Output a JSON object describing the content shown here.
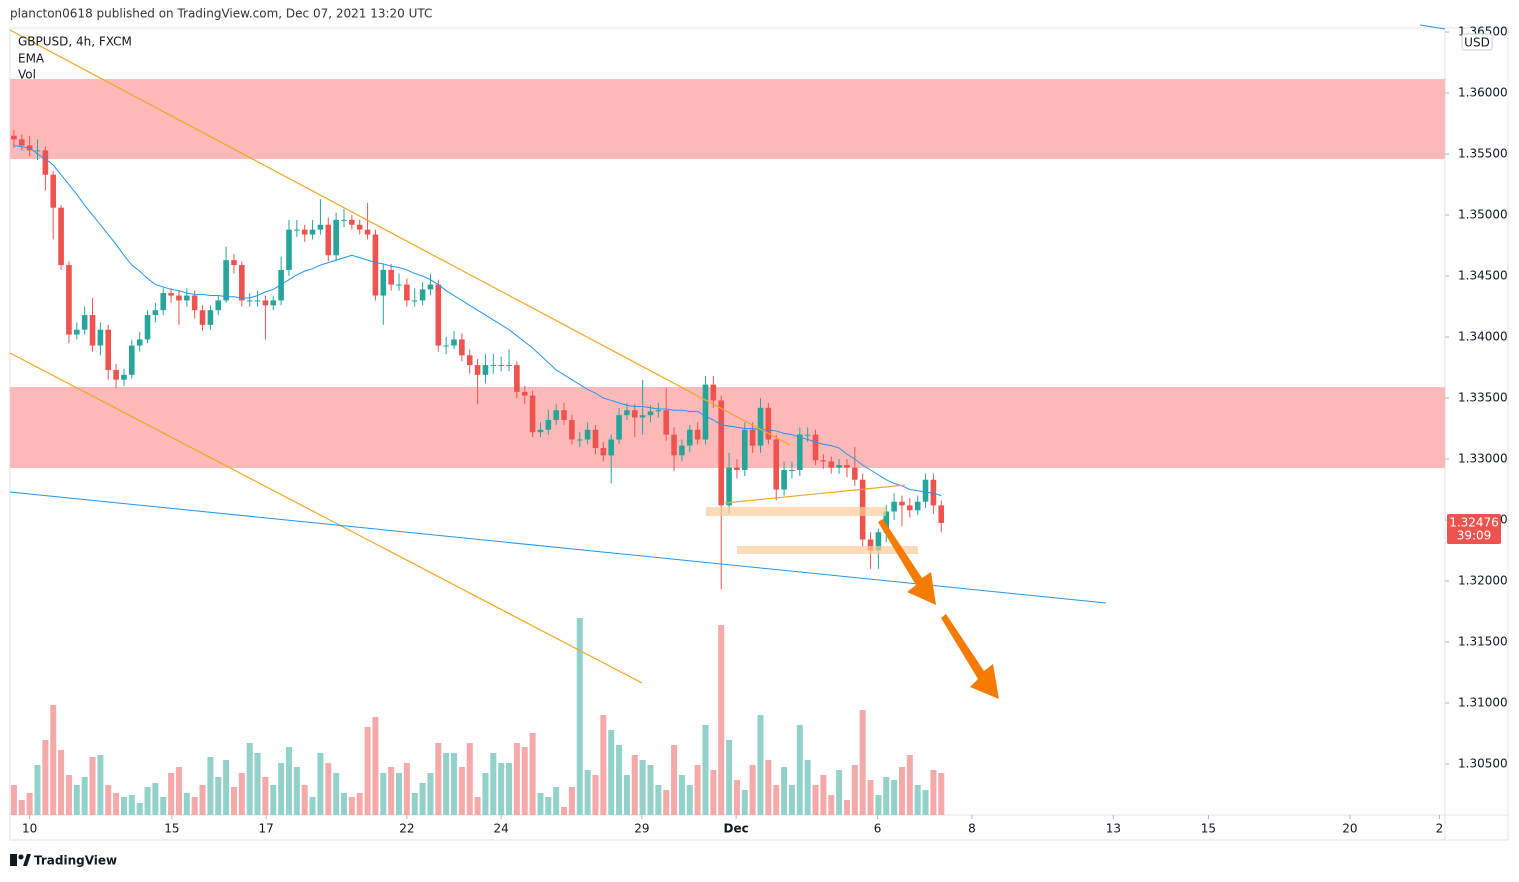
{
  "header": "plancton0618 published on TradingView.com, Dec 07, 2021 13:20 UTC",
  "footer": "TradingView",
  "chart_data": {
    "type": "candlestick",
    "title": "GBPUSD, 4h, FXCM",
    "currency": "USD",
    "countdown": "39:09",
    "up_color": "#26a69a",
    "down_color": "#ef5350",
    "volume_up_color": "#93d2ca",
    "volume_down_color": "#f5a9a9",
    "ylim": [
      1.30082,
      1.36533
    ],
    "yticks": [
      {
        "value": 1.305,
        "label": "1.30500"
      },
      {
        "value": 1.31,
        "label": "1.31000"
      },
      {
        "value": 1.315,
        "label": "1.31500"
      },
      {
        "value": 1.32,
        "label": "1.32000"
      },
      {
        "value": 1.325,
        "label": "1.32500"
      },
      {
        "value": 1.33,
        "label": "1.33000"
      },
      {
        "value": 1.335,
        "label": "1.33500"
      },
      {
        "value": 1.34,
        "label": "1.34000"
      },
      {
        "value": 1.345,
        "label": "1.34500"
      },
      {
        "value": 1.35,
        "label": "1.35000"
      },
      {
        "value": 1.355,
        "label": "1.35500"
      },
      {
        "value": 1.36,
        "label": "1.36000"
      },
      {
        "value": 1.365,
        "label": "1.36500"
      }
    ],
    "xlim": [
      -0.5,
      182.1
    ],
    "xticks": [
      {
        "value": 2,
        "label": "10"
      },
      {
        "value": 20.1,
        "label": "15"
      },
      {
        "value": 32.1,
        "label": "17"
      },
      {
        "value": 50,
        "label": "22"
      },
      {
        "value": 62,
        "label": "24"
      },
      {
        "value": 79.9,
        "label": "29"
      },
      {
        "value": 91.9,
        "label": "Dec"
      },
      {
        "value": 109.9,
        "label": "6"
      },
      {
        "value": 121.9,
        "label": "8"
      },
      {
        "value": 139.9,
        "label": "13"
      },
      {
        "value": 152,
        "label": "15"
      },
      {
        "value": 170,
        "label": "20"
      },
      {
        "value": 181.4,
        "label": "2"
      }
    ],
    "candles": [
      [
        1.3565,
        1.357,
        1.3555,
        1.3562
      ],
      [
        1.3562,
        1.3566,
        1.3553,
        1.3557
      ],
      [
        1.3557,
        1.3565,
        1.3548,
        1.3553
      ],
      [
        1.3553,
        1.3562,
        1.3545,
        1.3553
      ],
      [
        1.3553,
        1.3556,
        1.352,
        1.3533
      ],
      [
        1.3533,
        1.3536,
        1.348,
        1.3506
      ],
      [
        1.3506,
        1.3508,
        1.3455,
        1.3459
      ],
      [
        1.3459,
        1.3462,
        1.3395,
        1.3402
      ],
      [
        1.3402,
        1.3412,
        1.3398,
        1.3406
      ],
      [
        1.3406,
        1.3425,
        1.3402,
        1.3418
      ],
      [
        1.3418,
        1.3432,
        1.3388,
        1.3393
      ],
      [
        1.3393,
        1.3412,
        1.3385,
        1.3406
      ],
      [
        1.3406,
        1.341,
        1.3365,
        1.3373
      ],
      [
        1.3373,
        1.3378,
        1.3358,
        1.3365
      ],
      [
        1.3365,
        1.3374,
        1.336,
        1.3369
      ],
      [
        1.3369,
        1.3398,
        1.3366,
        1.3393
      ],
      [
        1.3393,
        1.3404,
        1.3388,
        1.3398
      ],
      [
        1.3398,
        1.3422,
        1.3395,
        1.3418
      ],
      [
        1.3418,
        1.3428,
        1.3412,
        1.3422
      ],
      [
        1.3422,
        1.344,
        1.3418,
        1.3436
      ],
      [
        1.3436,
        1.344,
        1.3428,
        1.3434
      ],
      [
        1.3434,
        1.3438,
        1.341,
        1.343
      ],
      [
        1.343,
        1.344,
        1.3425,
        1.3434
      ],
      [
        1.3434,
        1.3438,
        1.3415,
        1.3422
      ],
      [
        1.3422,
        1.3426,
        1.3405,
        1.341
      ],
      [
        1.341,
        1.3426,
        1.3406,
        1.3422
      ],
      [
        1.3422,
        1.3434,
        1.3418,
        1.343
      ],
      [
        1.343,
        1.3474,
        1.3428,
        1.3463
      ],
      [
        1.3463,
        1.3468,
        1.3452,
        1.3459
      ],
      [
        1.3459,
        1.3462,
        1.3425,
        1.343
      ],
      [
        1.343,
        1.3436,
        1.3425,
        1.343
      ],
      [
        1.343,
        1.3438,
        1.3425,
        1.343
      ],
      [
        1.343,
        1.3434,
        1.3398,
        1.3426
      ],
      [
        1.3426,
        1.3434,
        1.3422,
        1.343
      ],
      [
        1.343,
        1.3466,
        1.3426,
        1.3455
      ],
      [
        1.3455,
        1.3496,
        1.345,
        1.3488
      ],
      [
        1.3488,
        1.3496,
        1.3482,
        1.3488
      ],
      [
        1.3488,
        1.3492,
        1.3478,
        1.3484
      ],
      [
        1.3484,
        1.3496,
        1.348,
        1.3488
      ],
      [
        1.3488,
        1.3513,
        1.3484,
        1.3492
      ],
      [
        1.3492,
        1.3498,
        1.3462,
        1.3467
      ],
      [
        1.3467,
        1.3502,
        1.3462,
        1.3496
      ],
      [
        1.3496,
        1.3505,
        1.349,
        1.3496
      ],
      [
        1.3496,
        1.35,
        1.3488,
        1.3492
      ],
      [
        1.3492,
        1.3496,
        1.3484,
        1.3488
      ],
      [
        1.3488,
        1.351,
        1.348,
        1.3484
      ],
      [
        1.3484,
        1.3488,
        1.343,
        1.3434
      ],
      [
        1.3434,
        1.346,
        1.341,
        1.3455
      ],
      [
        1.3455,
        1.346,
        1.3438,
        1.3443
      ],
      [
        1.3443,
        1.3452,
        1.3438,
        1.3443
      ],
      [
        1.3443,
        1.3448,
        1.3425,
        1.343
      ],
      [
        1.343,
        1.344,
        1.3425,
        1.343
      ],
      [
        1.343,
        1.3445,
        1.3426,
        1.3439
      ],
      [
        1.3439,
        1.3452,
        1.3434,
        1.3443
      ],
      [
        1.3443,
        1.3447,
        1.3388,
        1.3393
      ],
      [
        1.3393,
        1.34,
        1.3386,
        1.3393
      ],
      [
        1.3393,
        1.3405,
        1.339,
        1.3398
      ],
      [
        1.3398,
        1.3403,
        1.338,
        1.3385
      ],
      [
        1.3385,
        1.339,
        1.337,
        1.3377
      ],
      [
        1.3377,
        1.3382,
        1.3345,
        1.3369
      ],
      [
        1.3369,
        1.3386,
        1.3362,
        1.3377
      ],
      [
        1.3377,
        1.3386,
        1.337,
        1.3377
      ],
      [
        1.3377,
        1.3384,
        1.3372,
        1.3377
      ],
      [
        1.3377,
        1.339,
        1.3372,
        1.3377
      ],
      [
        1.3377,
        1.338,
        1.335,
        1.3355
      ],
      [
        1.3355,
        1.336,
        1.3345,
        1.3352
      ],
      [
        1.3352,
        1.3356,
        1.3318,
        1.3322
      ],
      [
        1.3322,
        1.333,
        1.3318,
        1.3324
      ],
      [
        1.3324,
        1.334,
        1.332,
        1.3332
      ],
      [
        1.3332,
        1.3345,
        1.3328,
        1.334
      ],
      [
        1.334,
        1.3346,
        1.3328,
        1.3332
      ],
      [
        1.3332,
        1.3336,
        1.3312,
        1.3316
      ],
      [
        1.3316,
        1.3322,
        1.331,
        1.3316
      ],
      [
        1.3316,
        1.333,
        1.3312,
        1.3324
      ],
      [
        1.3324,
        1.3328,
        1.3304,
        1.3309
      ],
      [
        1.3309,
        1.3314,
        1.3298,
        1.3303
      ],
      [
        1.3303,
        1.332,
        1.328,
        1.3316
      ],
      [
        1.3316,
        1.3342,
        1.3312,
        1.3336
      ],
      [
        1.3336,
        1.3346,
        1.3332,
        1.334
      ],
      [
        1.334,
        1.3345,
        1.3318,
        1.3334
      ],
      [
        1.3334,
        1.3365,
        1.332,
        1.3336
      ],
      [
        1.3336,
        1.3344,
        1.333,
        1.3339
      ],
      [
        1.3339,
        1.3346,
        1.3334,
        1.334
      ],
      [
        1.334,
        1.3358,
        1.3315,
        1.332
      ],
      [
        1.332,
        1.3326,
        1.329,
        1.3303
      ],
      [
        1.3303,
        1.3316,
        1.3298,
        1.3311
      ],
      [
        1.3311,
        1.3328,
        1.3306,
        1.3324
      ],
      [
        1.3324,
        1.333,
        1.3312,
        1.3316
      ],
      [
        1.3316,
        1.3368,
        1.3312,
        1.3361
      ],
      [
        1.3361,
        1.3368,
        1.3342,
        1.3348
      ],
      [
        1.3348,
        1.3352,
        1.3193,
        1.3262
      ],
      [
        1.3262,
        1.3305,
        1.3255,
        1.3293
      ],
      [
        1.3293,
        1.33,
        1.3284,
        1.3291
      ],
      [
        1.3291,
        1.333,
        1.3286,
        1.3324
      ],
      [
        1.3324,
        1.333,
        1.3305,
        1.3311
      ],
      [
        1.3311,
        1.335,
        1.3305,
        1.3342
      ],
      [
        1.3342,
        1.3346,
        1.3312,
        1.3316
      ],
      [
        1.3316,
        1.332,
        1.3266,
        1.3275
      ],
      [
        1.3275,
        1.3298,
        1.327,
        1.3291
      ],
      [
        1.3291,
        1.3298,
        1.3284,
        1.3291
      ],
      [
        1.3291,
        1.3326,
        1.3286,
        1.332
      ],
      [
        1.332,
        1.3326,
        1.3314,
        1.332
      ],
      [
        1.332,
        1.3324,
        1.3295,
        1.3299
      ],
      [
        1.3299,
        1.3304,
        1.3292,
        1.3298
      ],
      [
        1.3298,
        1.3302,
        1.3288,
        1.3293
      ],
      [
        1.3293,
        1.33,
        1.3288,
        1.3295
      ],
      [
        1.3295,
        1.33,
        1.3285,
        1.3293
      ],
      [
        1.3293,
        1.331,
        1.3278,
        1.3283
      ],
      [
        1.3283,
        1.3288,
        1.3228,
        1.3234
      ],
      [
        1.3234,
        1.324,
        1.321,
        1.3225
      ],
      [
        1.3225,
        1.3243,
        1.321,
        1.324
      ],
      [
        1.324,
        1.3262,
        1.3232,
        1.3257
      ],
      [
        1.3257,
        1.3272,
        1.325,
        1.3265
      ],
      [
        1.3265,
        1.327,
        1.3245,
        1.3262
      ],
      [
        1.3262,
        1.3268,
        1.3252,
        1.3258
      ],
      [
        1.3258,
        1.327,
        1.3254,
        1.3265
      ],
      [
        1.3265,
        1.3288,
        1.326,
        1.3283
      ],
      [
        1.3283,
        1.3288,
        1.3255,
        1.3262
      ],
      [
        1.3262,
        1.3266,
        1.324,
        1.32476
      ]
    ],
    "series": [
      {
        "name": "EMA",
        "color": "#2196f3",
        "values": [
          1.3557,
          1.3556,
          1.3555,
          1.355,
          1.3546,
          1.3541,
          1.3533,
          1.3525,
          1.3517,
          1.3508,
          1.35,
          1.3492,
          1.3484,
          1.3476,
          1.3467,
          1.3459,
          1.3454,
          1.3448,
          1.3443,
          1.3441,
          1.3439,
          1.3438,
          1.3436,
          1.3435,
          1.3435,
          1.3434,
          1.3434,
          1.3433,
          1.3433,
          1.3432,
          1.3432,
          1.3434,
          1.3437,
          1.3439,
          1.3443,
          1.3447,
          1.3451,
          1.3454,
          1.3456,
          1.3459,
          1.3461,
          1.3463,
          1.3465,
          1.3467,
          1.3465,
          1.3463,
          1.3461,
          1.346,
          1.3458,
          1.3457,
          1.3455,
          1.3452,
          1.345,
          1.3447,
          1.3443,
          1.3438,
          1.3434,
          1.343,
          1.3426,
          1.3422,
          1.3418,
          1.3414,
          1.341,
          1.3406,
          1.3401,
          1.3396,
          1.3391,
          1.3385,
          1.3379,
          1.3373,
          1.3369,
          1.3365,
          1.3361,
          1.3357,
          1.3354,
          1.335,
          1.3348,
          1.3346,
          1.3344,
          1.3343,
          1.3343,
          1.3342,
          1.3341,
          1.3341,
          1.334,
          1.334,
          1.3339,
          1.3339,
          1.3335,
          1.3332,
          1.3328,
          1.3327,
          1.3326,
          1.3325,
          1.3325,
          1.3324,
          1.3324,
          1.3323,
          1.3321,
          1.332,
          1.3318,
          1.3316,
          1.3314,
          1.3312,
          1.3311,
          1.3309,
          1.3304,
          1.33,
          1.3295,
          1.3291,
          1.3287,
          1.3283,
          1.328,
          1.3278,
          1.3275,
          1.3274,
          1.3273,
          1.3272,
          1.327
        ]
      },
      {
        "name": "Vol",
        "values": [
          30,
          15,
          22,
          50,
          75,
          110,
          65,
          40,
          30,
          38,
          58,
          60,
          30,
          22,
          18,
          20,
          12,
          28,
          32,
          18,
          42,
          48,
          22,
          18,
          30,
          58,
          38,
          55,
          28,
          42,
          72,
          62,
          38,
          30,
          52,
          68,
          48,
          30,
          18,
          62,
          52,
          42,
          22,
          18,
          22,
          88,
          98,
          42,
          48,
          42,
          52,
          22,
          32,
          42,
          72,
          62,
          62,
          48,
          72,
          18,
          42,
          62,
          52,
          52,
          72,
          68,
          82,
          22,
          18,
          28,
          8,
          28,
          197,
          45,
          40,
          100,
          85,
          70,
          40,
          60,
          55,
          50,
          30,
          25,
          70,
          40,
          30,
          50,
          90,
          45,
          190,
          75,
          35,
          25,
          50,
          100,
          55,
          30,
          48,
          30,
          90,
          55,
          30,
          40,
          20,
          45,
          15,
          50,
          105,
          35,
          20,
          38,
          35,
          48,
          60,
          30,
          25,
          45,
          42
        ]
      }
    ]
  }
}
